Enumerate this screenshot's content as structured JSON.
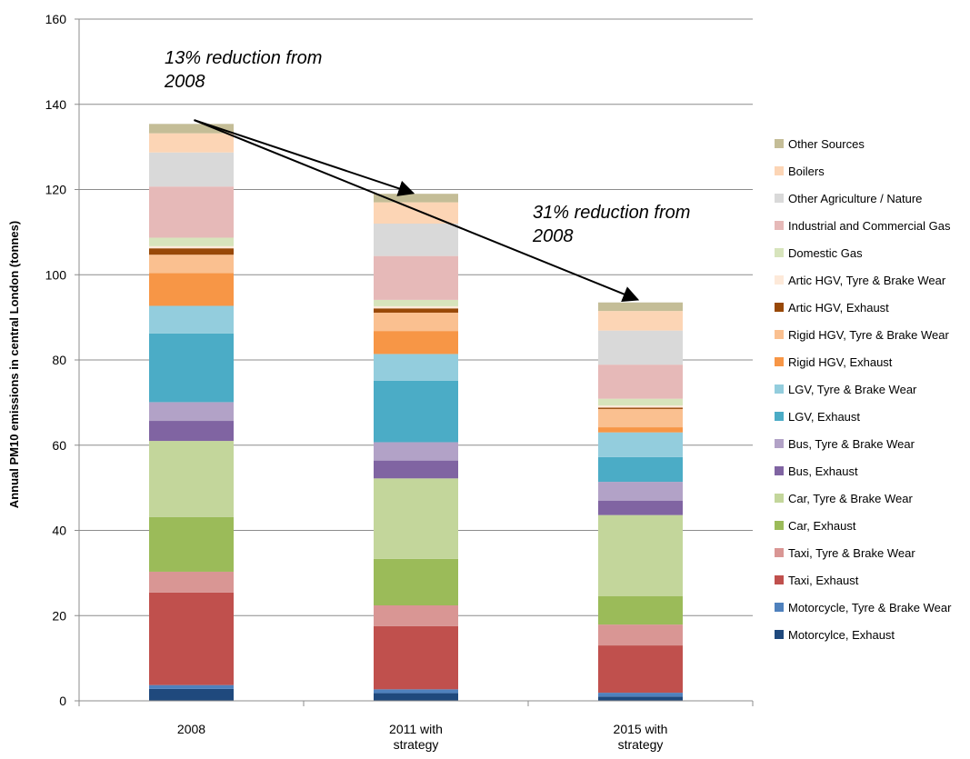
{
  "chart_data": {
    "type": "bar",
    "stacked": true,
    "title": "",
    "xlabel": "",
    "ylabel": "Annual PM10 emissions in central London (tonnes)",
    "ylim": [
      0,
      160
    ],
    "yticks": [
      0,
      20,
      40,
      60,
      80,
      100,
      120,
      140,
      160
    ],
    "grid": true,
    "legend_position": "right",
    "categories": [
      "2008",
      "2011 with strategy",
      "2015 with strategy"
    ],
    "category_lines": [
      [
        "2008"
      ],
      [
        "2011 with",
        "strategy"
      ],
      [
        "2015 with",
        "strategy"
      ]
    ],
    "series": [
      {
        "name": "Motorcylce, Exhaust",
        "color": "#1F497D",
        "values": [
          2.8,
          1.8,
          1.0
        ]
      },
      {
        "name": "Motorcycle, Tyre & Brake Wear",
        "color": "#4F81BD",
        "values": [
          0.9,
          0.9,
          0.9
        ]
      },
      {
        "name": "Taxi, Exhaust",
        "color": "#C0504D",
        "values": [
          21.7,
          14.8,
          11.1
        ]
      },
      {
        "name": "Taxi, Tyre & Brake Wear",
        "color": "#D99694",
        "values": [
          4.9,
          4.9,
          4.9
        ]
      },
      {
        "name": "Car, Exhaust",
        "color": "#9BBB59",
        "values": [
          12.8,
          10.9,
          6.7
        ]
      },
      {
        "name": "Car, Tyre & Brake Wear",
        "color": "#C3D69B",
        "values": [
          17.9,
          18.9,
          19.0
        ]
      },
      {
        "name": "Bus, Exhaust",
        "color": "#8064A2",
        "values": [
          4.7,
          4.2,
          3.4
        ]
      },
      {
        "name": "Bus, Tyre & Brake Wear",
        "color": "#B2A2C7",
        "values": [
          4.4,
          4.3,
          4.4
        ]
      },
      {
        "name": "LGV, Exhaust",
        "color": "#4BACC6",
        "values": [
          16.1,
          14.4,
          5.8
        ]
      },
      {
        "name": "LGV, Tyre & Brake Wear",
        "color": "#93CDDD",
        "values": [
          6.5,
          6.3,
          5.8
        ]
      },
      {
        "name": "Rigid HGV, Exhaust",
        "color": "#F79646",
        "values": [
          7.7,
          5.4,
          1.2
        ]
      },
      {
        "name": "Rigid HGV, Tyre & Brake Wear",
        "color": "#FAC090",
        "values": [
          4.3,
          4.3,
          4.3
        ]
      },
      {
        "name": "Artic HGV, Exhaust",
        "color": "#984807",
        "values": [
          1.5,
          1.0,
          0.3
        ]
      },
      {
        "name": "Artic HGV, Tyre & Brake Wear",
        "color": "#FDE9D9",
        "values": [
          0.5,
          0.5,
          0.5
        ]
      },
      {
        "name": "Domestic Gas",
        "color": "#D7E4BC",
        "values": [
          2.0,
          1.5,
          1.6
        ]
      },
      {
        "name": "Industrial and Commercial Gas",
        "color": "#E6B9B8",
        "values": [
          12.0,
          10.3,
          8.0
        ]
      },
      {
        "name": "Other Agriculture / Nature",
        "color": "#D9D9D9",
        "values": [
          8.0,
          7.6,
          8.0
        ]
      },
      {
        "name": "Boilers",
        "color": "#FCD5B5",
        "values": [
          4.5,
          5.0,
          4.6
        ]
      },
      {
        "name": "Other Sources",
        "color": "#C4BD97",
        "values": [
          2.2,
          2.0,
          2.0
        ]
      }
    ],
    "annotations": [
      {
        "lines": [
          "13% reduction from",
          "2008"
        ],
        "arrow_from": {
          "category": "2008",
          "value": 136.3
        },
        "arrow_to": {
          "category": "2011 with strategy",
          "value": 118.5
        }
      },
      {
        "lines": [
          "31% reduction from",
          "2008"
        ],
        "arrow_from": {
          "category": "2008",
          "value": 136.3
        },
        "arrow_to": {
          "category": "2015 with strategy",
          "value": 93.5
        }
      }
    ]
  }
}
